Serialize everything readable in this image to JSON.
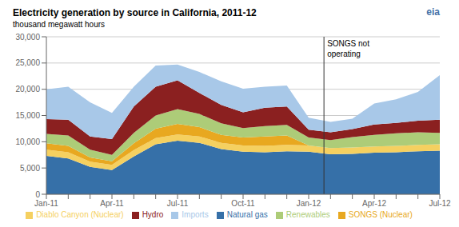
{
  "chart_data": {
    "type": "area",
    "stacked": true,
    "title": "Electricity generation  by source in California, 2011-12",
    "subtitle": "thousand megawatt hours",
    "categories": [
      "Jan-11",
      null,
      null,
      "Apr-11",
      null,
      null,
      "Jul-11",
      null,
      null,
      "Oct-11",
      null,
      null,
      "Jan-12",
      null,
      null,
      "Apr-12",
      null,
      null,
      "Jul-12"
    ],
    "series": [
      {
        "name": "Natural gas",
        "color": "#3670A8",
        "values": [
          7300,
          6800,
          5200,
          4600,
          7200,
          9500,
          10200,
          9800,
          8600,
          8100,
          8000,
          8200,
          8100,
          7600,
          7700,
          7900,
          8000,
          8200,
          8300
        ]
      },
      {
        "name": "Diablo Canyon (Nuclear)",
        "color": "#F5D060",
        "values": [
          1200,
          1200,
          1000,
          1000,
          1200,
          1200,
          1200,
          1200,
          1200,
          1200,
          1200,
          1200,
          1200,
          1200,
          1200,
          1200,
          1200,
          1200,
          1200
        ]
      },
      {
        "name": "SONGS (Nuclear)",
        "color": "#E8A820",
        "values": [
          1200,
          1200,
          800,
          700,
          1300,
          1800,
          2000,
          1800,
          1500,
          1500,
          1800,
          1800,
          0,
          0,
          0,
          0,
          0,
          0,
          0
        ]
      },
      {
        "name": "Renewables",
        "color": "#ADCC78",
        "values": [
          1800,
          2000,
          1500,
          1200,
          2000,
          2500,
          2800,
          2500,
          2200,
          1800,
          2000,
          2000,
          1500,
          1500,
          2000,
          2200,
          2400,
          2400,
          2200
        ]
      },
      {
        "name": "Hydro",
        "color": "#8B2020",
        "values": [
          2800,
          3000,
          2500,
          3000,
          5000,
          5500,
          5500,
          4000,
          3500,
          3000,
          3500,
          3500,
          1500,
          1500,
          1500,
          2000,
          2000,
          2200,
          2500
        ]
      },
      {
        "name": "Imports",
        "color": "#A8C8E8",
        "values": [
          5700,
          6300,
          6500,
          5000,
          3800,
          4000,
          3000,
          4000,
          4500,
          4500,
          4000,
          4000,
          2300,
          2000,
          2000,
          4000,
          4500,
          5500,
          8500
        ]
      }
    ],
    "ylim": [
      0,
      30000
    ],
    "yticks": [
      0,
      {
        "value": 5000,
        "label": "5,000"
      },
      {
        "value": 10000,
        "label": "10,000"
      },
      {
        "value": 15000,
        "label": "15,000"
      },
      {
        "value": 20000,
        "label": "20,000"
      },
      {
        "value": 25000,
        "label": "25,000"
      },
      {
        "value": 30000,
        "label": "30,000"
      }
    ],
    "grid": true,
    "annotations": [
      {
        "text": "SONGS not\noperating",
        "x": 12.7
      },
      {
        "text": "eia"
      }
    ]
  }
}
